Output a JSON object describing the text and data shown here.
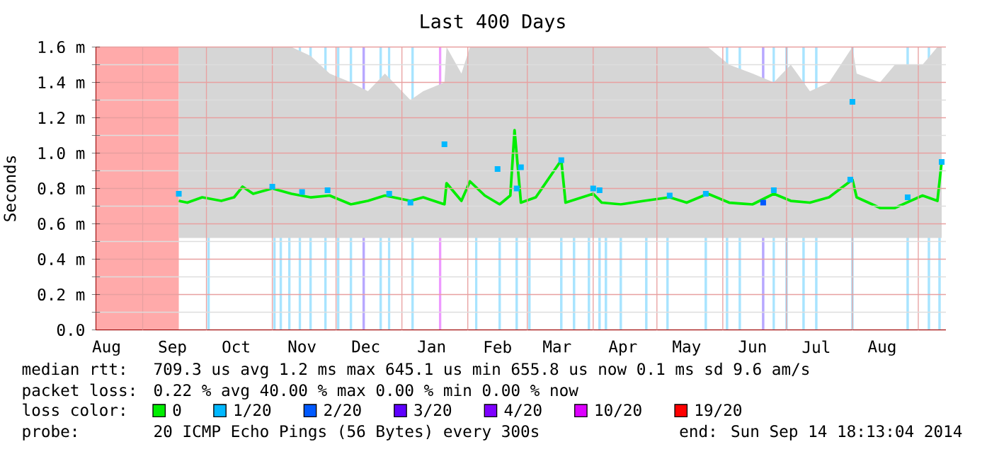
{
  "chart_data": {
    "type": "line",
    "title": "Last 400 Days",
    "ylabel": "Seconds",
    "xlim": [
      "2013-08-10",
      "2014-09-14"
    ],
    "xticks": [
      {
        "value": "2013-08-15",
        "label": "Aug"
      },
      {
        "value": "2013-09-15",
        "label": "Sep"
      },
      {
        "value": "2013-10-15",
        "label": "Oct"
      },
      {
        "value": "2013-11-15",
        "label": "Nov"
      },
      {
        "value": "2013-12-15",
        "label": "Dec"
      },
      {
        "value": "2014-01-15",
        "label": "Jan"
      },
      {
        "value": "2014-02-15",
        "label": "Feb"
      },
      {
        "value": "2014-03-15",
        "label": "Mar"
      },
      {
        "value": "2014-04-15",
        "label": "Apr"
      },
      {
        "value": "2014-05-15",
        "label": "May"
      },
      {
        "value": "2014-06-15",
        "label": "Jun"
      },
      {
        "value": "2014-07-15",
        "label": "Jul"
      },
      {
        "value": "2014-08-15",
        "label": "Aug"
      },
      {
        "value": "2013-09-01",
        "label": null
      },
      {
        "value": "2013-10-01",
        "label": null
      },
      {
        "value": "2013-11-01",
        "label": null
      },
      {
        "value": "2013-12-01",
        "label": null
      },
      {
        "value": "2014-01-01",
        "label": null
      },
      {
        "value": "2014-02-01",
        "label": null
      },
      {
        "value": "2014-03-01",
        "label": null
      },
      {
        "value": "2014-04-01",
        "label": null
      },
      {
        "value": "2014-05-01",
        "label": null
      },
      {
        "value": "2014-06-01",
        "label": null
      },
      {
        "value": "2014-07-01",
        "label": null
      },
      {
        "value": "2014-08-01",
        "label": null
      },
      {
        "value": "2014-09-01",
        "label": null
      }
    ],
    "ylim": [
      0,
      1.6
    ],
    "yticks": [
      {
        "value": 0,
        "label": "0.0"
      },
      {
        "value": 0.2,
        "label": "0.2 m"
      },
      {
        "value": 0.4,
        "label": "0.4 m"
      },
      {
        "value": 0.6,
        "label": "0.6 m"
      },
      {
        "value": 0.8,
        "label": "0.8 m"
      },
      {
        "value": 1.0,
        "label": "1.0 m"
      },
      {
        "value": 1.2,
        "label": "1.2 m"
      },
      {
        "value": 1.4,
        "label": "1.4 m"
      },
      {
        "value": 1.6,
        "label": "1.6 m"
      },
      {
        "value": 0.1,
        "label": null
      },
      {
        "value": 0.3,
        "label": null
      },
      {
        "value": 0.5,
        "label": null
      },
      {
        "value": 0.7,
        "label": null
      },
      {
        "value": 0.9,
        "label": null
      },
      {
        "value": 1.1,
        "label": null
      },
      {
        "value": 1.3,
        "label": null
      },
      {
        "value": 1.5,
        "label": null
      }
    ],
    "grid": true,
    "legend": "bottom",
    "legend_title": "loss color:",
    "series": [
      {
        "name": "0",
        "color": "#00ee00",
        "x": [
          "2013-09-18",
          "2013-09-22",
          "2013-09-29",
          "2013-10-08",
          "2013-10-14",
          "2013-10-18",
          "2013-10-23",
          "2013-11-01",
          "2013-11-10",
          "2013-11-19",
          "2013-11-28",
          "2013-12-08",
          "2013-12-16",
          "2013-12-24",
          "2014-01-05",
          "2014-01-11",
          "2014-01-21",
          "2014-01-22",
          "2014-01-29",
          "2014-02-02",
          "2014-02-09",
          "2014-02-16",
          "2014-02-21",
          "2014-02-23",
          "2014-02-26",
          "2014-03-05",
          "2014-03-17",
          "2014-03-19",
          "2014-04-01",
          "2014-04-05",
          "2014-04-14",
          "2014-04-25",
          "2014-05-07",
          "2014-05-15",
          "2014-05-25",
          "2014-06-04",
          "2014-06-15",
          "2014-06-25",
          "2014-07-03",
          "2014-07-12",
          "2014-07-21",
          "2014-08-01",
          "2014-08-03",
          "2014-08-14",
          "2014-08-21",
          "2014-09-03",
          "2014-09-10",
          "2014-09-12"
        ],
        "values": [
          0.73,
          0.72,
          0.75,
          0.73,
          0.75,
          0.81,
          0.77,
          0.8,
          0.77,
          0.75,
          0.76,
          0.71,
          0.73,
          0.76,
          0.73,
          0.75,
          0.71,
          0.83,
          0.73,
          0.84,
          0.76,
          0.71,
          0.76,
          1.13,
          0.72,
          0.75,
          0.96,
          0.72,
          0.77,
          0.72,
          0.71,
          0.73,
          0.75,
          0.72,
          0.77,
          0.72,
          0.71,
          0.77,
          0.73,
          0.72,
          0.75,
          0.85,
          0.75,
          0.69,
          0.69,
          0.76,
          0.73,
          0.95
        ],
        "lower": [
          0.52,
          0.52,
          0.52,
          0.52,
          0.52,
          0.52,
          0.52,
          0.52,
          0.52,
          0.52,
          0.52,
          0.52,
          0.52,
          0.52,
          0.52,
          0.52,
          0.52,
          0.52,
          0.52,
          0.52,
          0.52,
          0.52,
          0.52,
          0.52,
          0.52,
          0.52,
          0.52,
          0.52,
          0.52,
          0.52,
          0.52,
          0.52,
          0.52,
          0.52,
          0.52,
          0.52,
          0.52,
          0.52,
          0.52,
          0.52,
          0.52,
          0.52,
          0.52,
          0.52,
          0.52,
          0.52,
          0.52,
          0.52
        ],
        "upper": [
          1.6,
          1.6,
          1.6,
          1.6,
          1.6,
          1.6,
          1.6,
          1.6,
          1.6,
          1.55,
          1.45,
          1.4,
          1.35,
          1.45,
          1.3,
          1.35,
          1.4,
          1.6,
          1.45,
          1.6,
          1.6,
          1.6,
          1.6,
          1.6,
          1.6,
          1.6,
          1.6,
          1.6,
          1.6,
          1.6,
          1.6,
          1.6,
          1.6,
          1.6,
          1.6,
          1.5,
          1.45,
          1.4,
          1.5,
          1.35,
          1.4,
          1.6,
          1.45,
          1.4,
          1.5,
          1.5,
          1.6,
          1.6
        ]
      },
      {
        "name": "1/20",
        "type": "scatter",
        "color": "#00b8ff",
        "x": [
          "2013-09-18",
          "2013-11-01",
          "2013-11-15",
          "2013-11-27",
          "2013-12-26",
          "2014-01-05",
          "2014-01-21",
          "2014-02-15",
          "2014-02-24",
          "2014-02-26",
          "2014-03-17",
          "2014-04-01",
          "2014-04-04",
          "2014-05-07",
          "2014-05-24",
          "2014-06-25",
          "2014-07-31",
          "2014-08-01",
          "2014-08-27",
          "2014-09-12"
        ],
        "values": [
          0.77,
          0.81,
          0.78,
          0.79,
          0.77,
          0.72,
          1.05,
          0.91,
          0.8,
          0.92,
          0.96,
          0.8,
          0.79,
          0.76,
          0.77,
          0.79,
          0.85,
          1.29,
          0.75,
          0.95
        ]
      },
      {
        "name": "2/20",
        "type": "scatter",
        "color": "#0059ff",
        "x": [
          "2014-06-20"
        ],
        "values": [
          0.72
        ]
      },
      {
        "name": "3/20",
        "type": "scatter",
        "color": "#5e00ff"
      },
      {
        "name": "4/20",
        "type": "scatter",
        "color": "#7e00ff"
      },
      {
        "name": "10/20",
        "type": "scatter",
        "color": "#dd00ff"
      },
      {
        "name": "19/20",
        "type": "scatter",
        "color": "#ff0000"
      }
    ],
    "bands": [
      {
        "axis": "x",
        "from": "2013-08-10",
        "to": "2013-09-18",
        "color": "#ffaaaa"
      }
    ],
    "ref_lines": [
      {
        "axis": "x",
        "value": "2013-10-02",
        "color": "#a8e4ff"
      },
      {
        "axis": "x",
        "value": "2013-11-02",
        "color": "#a8e4ff"
      },
      {
        "axis": "x",
        "value": "2013-11-05",
        "color": "#a8e4ff"
      },
      {
        "axis": "x",
        "value": "2013-11-09",
        "color": "#a8e4ff"
      },
      {
        "axis": "x",
        "value": "2013-11-14",
        "color": "#a8e4ff"
      },
      {
        "axis": "x",
        "value": "2013-11-19",
        "color": "#a8e4ff"
      },
      {
        "axis": "x",
        "value": "2013-11-26",
        "color": "#a8e4ff"
      },
      {
        "axis": "x",
        "value": "2013-12-02",
        "color": "#a8e4ff"
      },
      {
        "axis": "x",
        "value": "2013-12-08",
        "color": "#a8e4ff"
      },
      {
        "axis": "x",
        "value": "2013-12-14",
        "color": "#b8a8ff"
      },
      {
        "axis": "x",
        "value": "2013-12-22",
        "color": "#a8e4ff"
      },
      {
        "axis": "x",
        "value": "2013-12-26",
        "color": "#a8e4ff"
      },
      {
        "axis": "x",
        "value": "2014-01-06",
        "color": "#a8e4ff"
      },
      {
        "axis": "x",
        "value": "2014-01-19",
        "color": "#ee99ff"
      },
      {
        "axis": "x",
        "value": "2014-02-05",
        "color": "#a8e4ff"
      },
      {
        "axis": "x",
        "value": "2014-02-16",
        "color": "#a8e4ff"
      },
      {
        "axis": "x",
        "value": "2014-02-24",
        "color": "#a8e4ff"
      },
      {
        "axis": "x",
        "value": "2014-03-02",
        "color": "#a8e4ff"
      },
      {
        "axis": "x",
        "value": "2014-03-17",
        "color": "#a8e4ff"
      },
      {
        "axis": "x",
        "value": "2014-03-23",
        "color": "#a8e4ff"
      },
      {
        "axis": "x",
        "value": "2014-03-30",
        "color": "#a8e4ff"
      },
      {
        "axis": "x",
        "value": "2014-04-04",
        "color": "#a8e4ff"
      },
      {
        "axis": "x",
        "value": "2014-04-07",
        "color": "#a8e4ff"
      },
      {
        "axis": "x",
        "value": "2014-04-14",
        "color": "#a8e4ff"
      },
      {
        "axis": "x",
        "value": "2014-04-26",
        "color": "#a8e4ff"
      },
      {
        "axis": "x",
        "value": "2014-05-06",
        "color": "#a8e4ff"
      },
      {
        "axis": "x",
        "value": "2014-05-24",
        "color": "#a8e4ff"
      },
      {
        "axis": "x",
        "value": "2014-06-03",
        "color": "#a8e4ff"
      },
      {
        "axis": "x",
        "value": "2014-06-09",
        "color": "#a8e4ff"
      },
      {
        "axis": "x",
        "value": "2014-06-20",
        "color": "#b8a8ff"
      },
      {
        "axis": "x",
        "value": "2014-06-25",
        "color": "#a8e4ff"
      },
      {
        "axis": "x",
        "value": "2014-07-01",
        "color": "#a8e4ff"
      },
      {
        "axis": "x",
        "value": "2014-07-09",
        "color": "#a8e4ff"
      },
      {
        "axis": "x",
        "value": "2014-07-15",
        "color": "#a8e4ff"
      },
      {
        "axis": "x",
        "value": "2014-08-01",
        "color": "#a8e4ff"
      },
      {
        "axis": "x",
        "value": "2014-08-27",
        "color": "#a8e4ff"
      },
      {
        "axis": "x",
        "value": "2014-09-06",
        "color": "#a8e4ff"
      },
      {
        "axis": "x",
        "value": "2014-09-11",
        "color": "#a8e4ff"
      }
    ],
    "annotations": [
      "median rtt:",
      "709.3 us avg  1.2 ms max  645.1 us min  655.8 us now  0.1 ms sd  9.6   am/s",
      "packet loss:",
      "0.22 % avg  40.00 % max  0.00 % min  0.00 % now",
      "probe:",
      "20 ICMP Echo Pings (56 Bytes) every 300s",
      "end: Sun Sep 14 18:13:04 2014"
    ]
  }
}
